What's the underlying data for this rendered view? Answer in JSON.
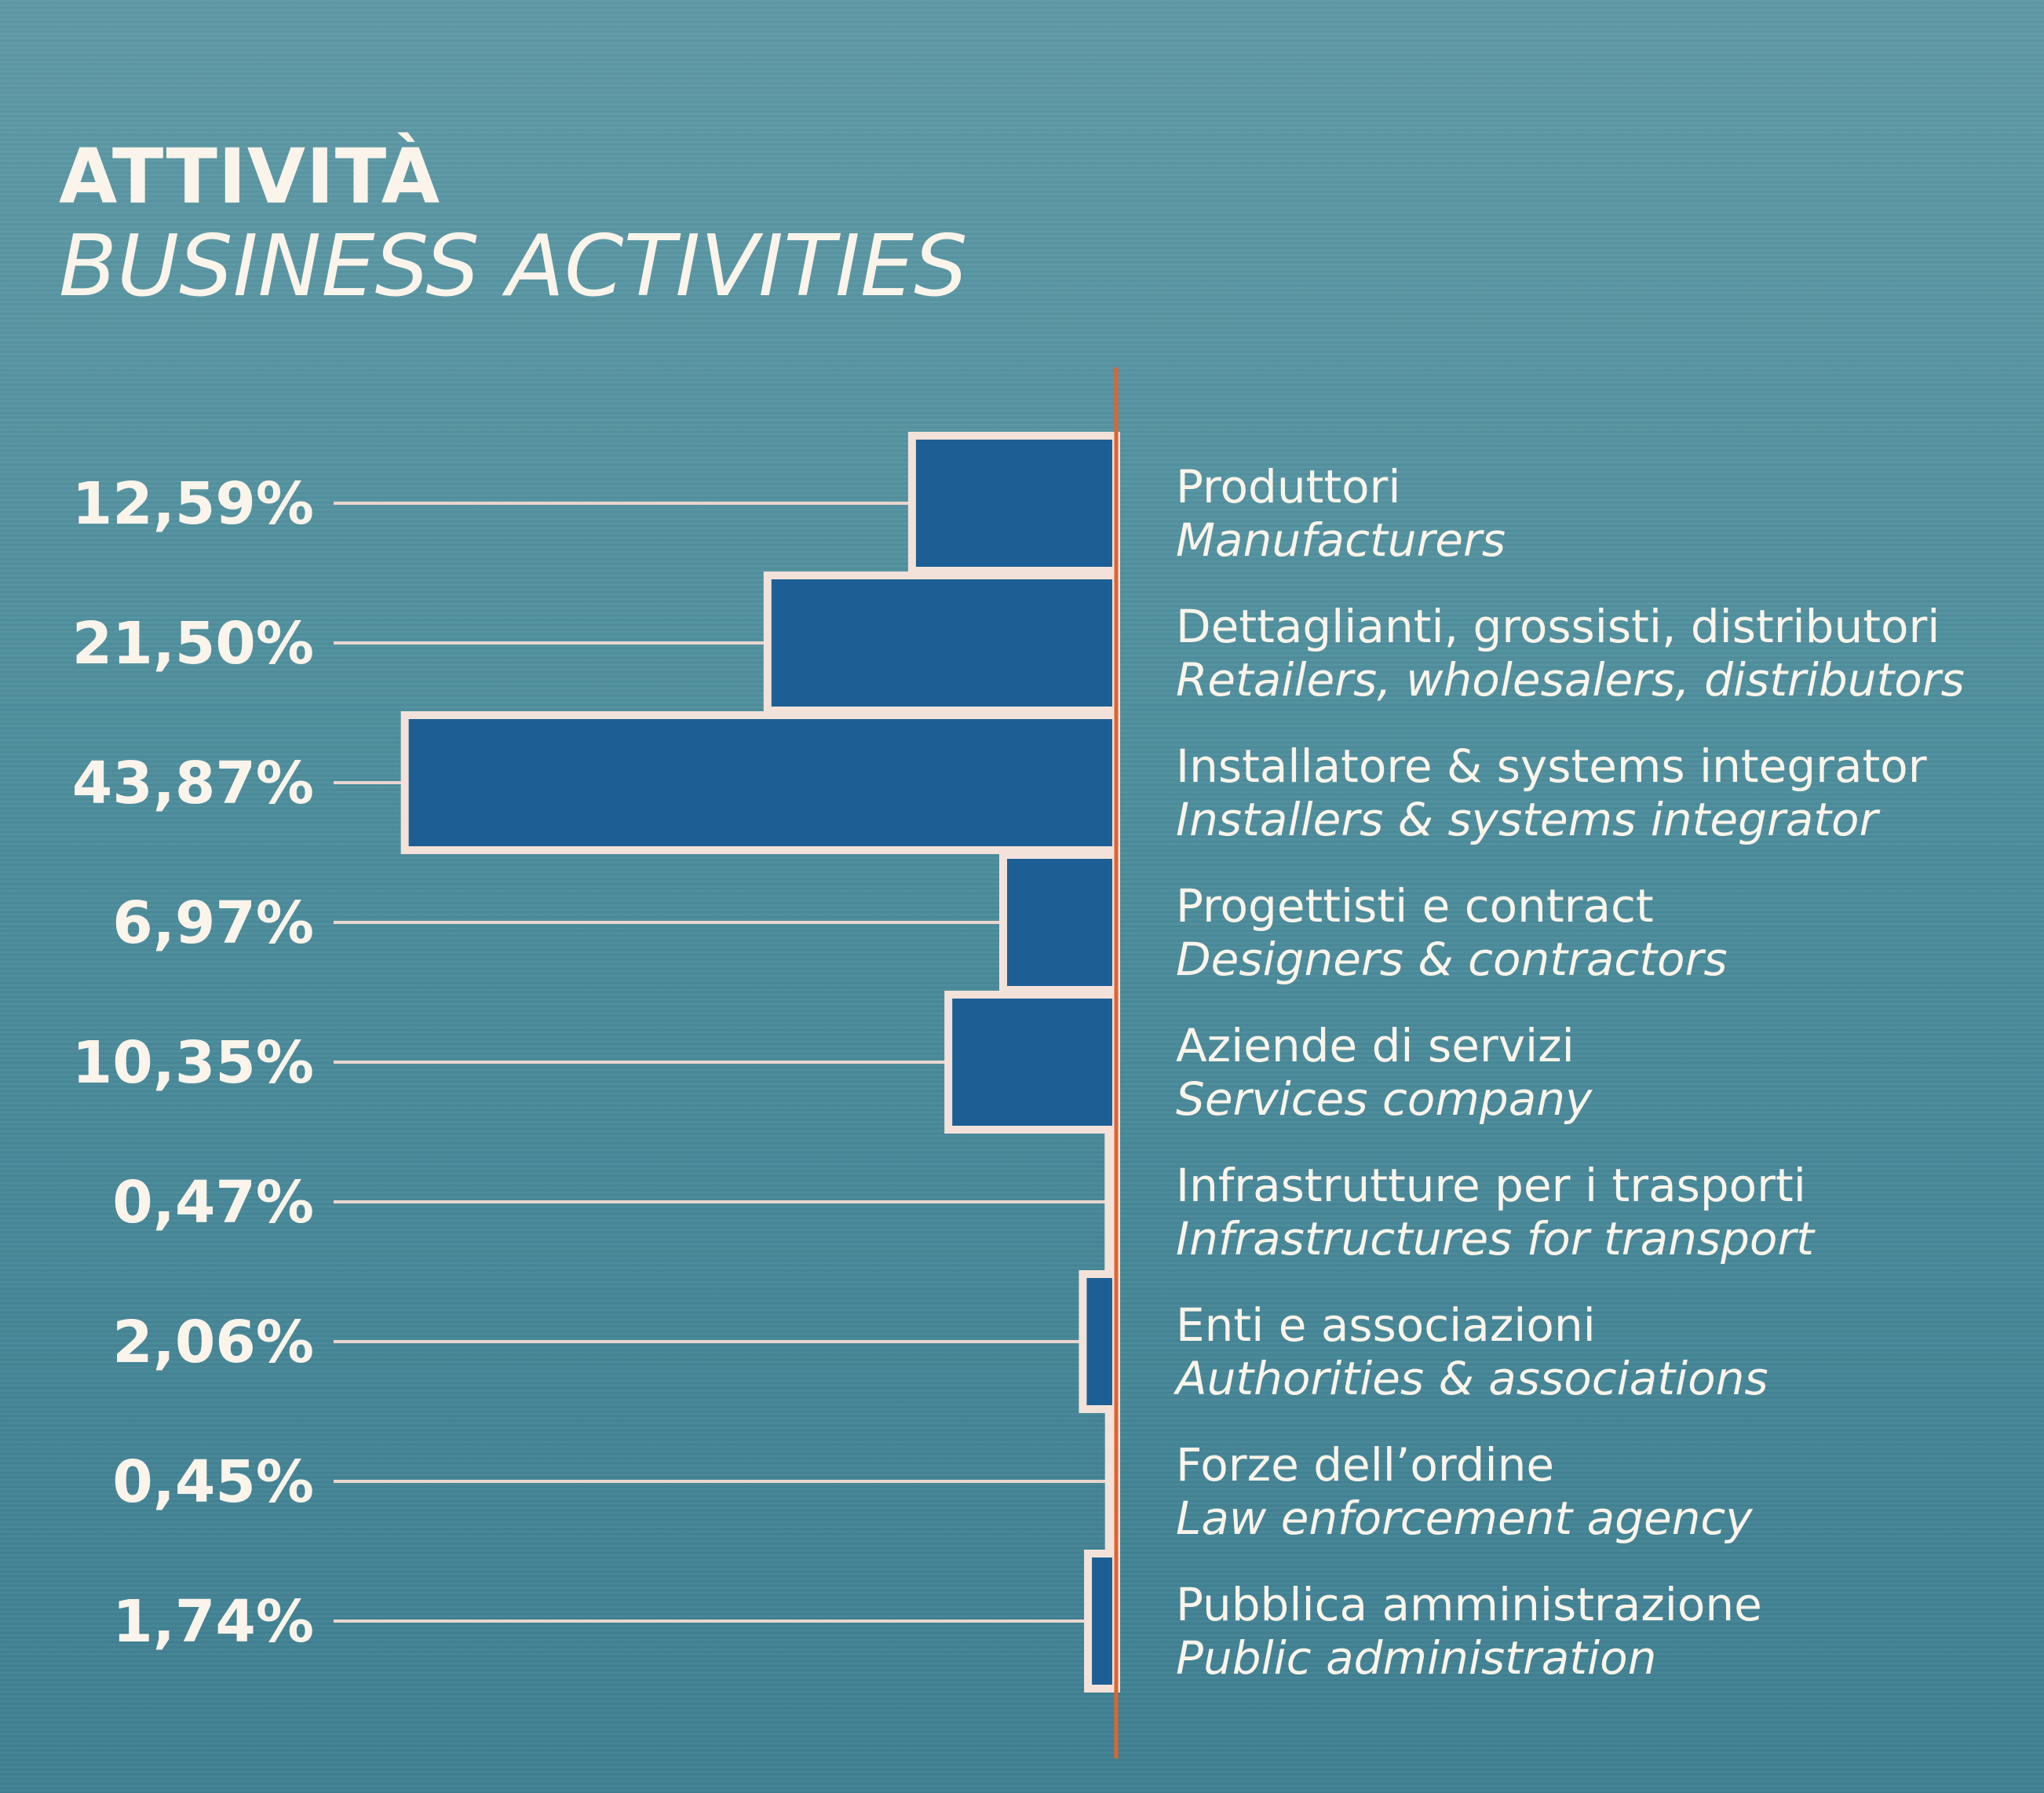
{
  "header": {
    "title": "ATTIVITÀ",
    "subtitle": "BUSINESS ACTIVITIES"
  },
  "colors": {
    "bar_fill": "#1d5f95",
    "bar_outline": "#f3e2d9",
    "axis_line": "#e0642e",
    "leader_line": "#e9d6cf",
    "text": "#fbf4ea"
  },
  "chart_data": {
    "type": "bar",
    "orientation": "horizontal",
    "title": "ATTIVITÀ",
    "subtitle": "BUSINESS ACTIVITIES",
    "categories": [
      "Produttori",
      "Dettaglianti, grossisti, distributori",
      "Installatore & systems integrator",
      "Progettisti e contract",
      "Aziende di servizi",
      "Infrastrutture per i trasporti",
      "Enti e associazioni",
      "Forze dell’ordine",
      "Pubblica amministrazione"
    ],
    "categories_en": [
      "Manufacturers",
      "Retailers, wholesalers, distributors",
      "Installers & systems integrator",
      "Designers & contractors",
      "Services company",
      "Infrastructures for transport",
      "Authorities & associations",
      "Law enforcement agency",
      "Public administration"
    ],
    "values": [
      12.59,
      21.5,
      43.87,
      6.97,
      10.35,
      0.47,
      2.06,
      0.45,
      1.74
    ],
    "value_labels": [
      "12,59%",
      "21,50%",
      "43,87%",
      "6,97%",
      "10,35%",
      "0,47%",
      "2,06%",
      "0,45%",
      "1,74%"
    ],
    "unit": "%",
    "xlim": [
      0,
      45
    ],
    "grid": false,
    "legend": "none"
  }
}
